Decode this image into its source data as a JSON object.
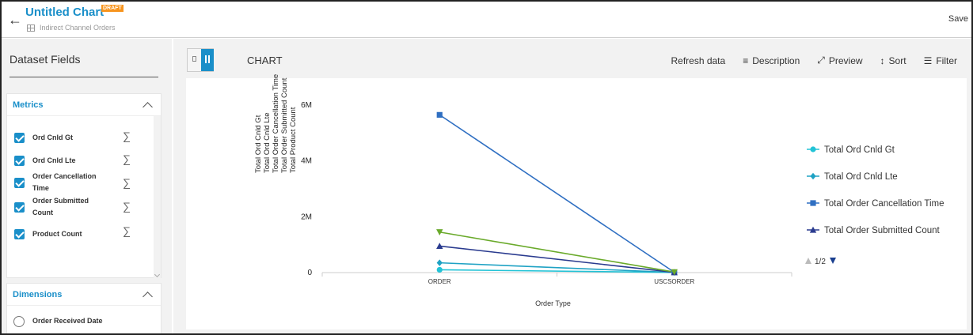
{
  "header": {
    "title": "Untitled Chart",
    "badge": "DRAFT",
    "dataset": "Indirect Channel Orders",
    "save_label": "Save"
  },
  "left_panel": {
    "title": "Dataset Fields",
    "metrics": {
      "label": "Metrics",
      "items": [
        {
          "label": "Ord Cnld Gt",
          "checked": true
        },
        {
          "label": "Ord Cnld Lte",
          "checked": true
        },
        {
          "label": "Order Cancellation Time",
          "checked": true
        },
        {
          "label": "Order Submitted Count",
          "checked": true
        },
        {
          "label": "Product Count",
          "checked": true
        }
      ]
    },
    "dimensions": {
      "label": "Dimensions",
      "items": [
        {
          "label": "Order Received Date",
          "selected": false
        }
      ]
    }
  },
  "main": {
    "view_label": "CHART",
    "toolbar": {
      "refresh": "Refresh data",
      "description": "Description",
      "preview": "Preview",
      "sort": "Sort",
      "filter": "Filter"
    }
  },
  "chart_data": {
    "type": "line",
    "categories": [
      "ORDER",
      "USCSORDER"
    ],
    "xlabel": "Order Type",
    "ylabel_lines": [
      "Total Ord Cnld Gt",
      "Total Ord Cnld Lte",
      "Total Order Cancellation Time",
      "Total Order Submitted Count",
      "Total Product Count"
    ],
    "ylim": [
      0,
      6000000
    ],
    "yticks": [
      {
        "value": 0,
        "label": "0"
      },
      {
        "value": 2000000,
        "label": "2M"
      },
      {
        "value": 4000000,
        "label": "4M"
      },
      {
        "value": 6000000,
        "label": "6M"
      }
    ],
    "series": [
      {
        "name": "Total Ord Cnld Gt",
        "values": [
          100000,
          5000
        ],
        "color": "#22c3d6",
        "marker": "circle"
      },
      {
        "name": "Total Ord Cnld Lte",
        "values": [
          350000,
          5000
        ],
        "color": "#1fa2c4",
        "marker": "diamond"
      },
      {
        "name": "Total Order Cancellation Time",
        "values": [
          5650000,
          10000
        ],
        "color": "#2f6fc2",
        "marker": "square"
      },
      {
        "name": "Total Order Submitted Count",
        "values": [
          950000,
          8000
        ],
        "color": "#2a3b8f",
        "marker": "triangle"
      },
      {
        "name": "Total Product Count",
        "values": [
          1450000,
          20000
        ],
        "color": "#6aaa2b",
        "marker": "triangle-down"
      }
    ],
    "legend": {
      "placement": "right",
      "visible_count": 4,
      "page_label": "1/2"
    }
  }
}
